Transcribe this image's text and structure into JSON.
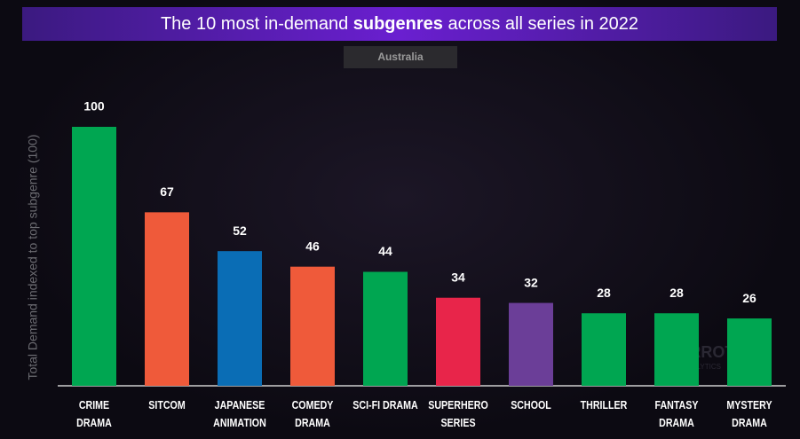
{
  "chart_data": {
    "type": "bar",
    "title": [
      "The 10 most in-demand ",
      "subgenres",
      " across all series in 2022"
    ],
    "subtitle": "Australia",
    "y_label": "Total Demand indexed to top subgenre (100)",
    "watermark": [
      "PARROT",
      "ANALYTICS"
    ],
    "categories": [
      "CRIME DRAMA",
      "SITCOM",
      "JAPANESE\nANIMATION",
      "COMEDY\nDRAMA",
      "SCI-FI DRAMA",
      "SUPERHERO\nSERIES",
      "SCHOOL",
      "THRILLER",
      "FANTASY\nDRAMA",
      "MYSTERY\nDRAMA"
    ],
    "values": [
      100,
      67,
      52,
      46,
      44,
      34,
      32,
      28,
      28,
      26
    ],
    "colors": [
      "#00a651",
      "#ef5a3a",
      "#0a6db5",
      "#ef5a3a",
      "#00a651",
      "#e8254a",
      "#6b3e98",
      "#00a651",
      "#00a651",
      "#00a651"
    ],
    "ylim": [
      0,
      100
    ]
  }
}
